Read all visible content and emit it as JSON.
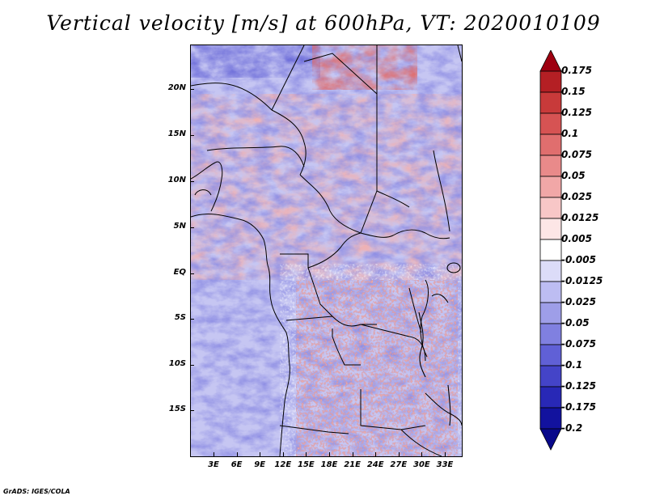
{
  "title": "Vertical velocity [m/s] at 600hPa, VT: 2020010109",
  "lat_labels": [
    "20N",
    "15N",
    "10N",
    "5N",
    "EQ",
    "5S",
    "10S",
    "15S"
  ],
  "lon_labels": [
    "3E",
    "6E",
    "9E",
    "12E",
    "15E",
    "18E",
    "21E",
    "24E",
    "27E",
    "30E",
    "33E"
  ],
  "colorbar": {
    "levels": [
      "0.175",
      "0.15",
      "0.125",
      "0.1",
      "0.075",
      "0.05",
      "0.025",
      "0.0125",
      "0.005",
      "-0.005",
      "-0.0125",
      "-0.025",
      "-0.05",
      "-0.075",
      "-0.1",
      "-0.125",
      "-0.175",
      "-0.2"
    ],
    "colors": [
      "#9e0010",
      "#b41f24",
      "#c83a3a",
      "#d65353",
      "#e06e6e",
      "#e98a8a",
      "#f1a7a7",
      "#f8c7c7",
      "#fde6e6",
      "#ffffff",
      "#dcdcf8",
      "#bdbdf2",
      "#9e9ee8",
      "#8080e0",
      "#6060d6",
      "#4444c8",
      "#2828b6",
      "#12129e",
      "#08088a"
    ]
  },
  "footer": "GrADS: IGES/COLA"
}
